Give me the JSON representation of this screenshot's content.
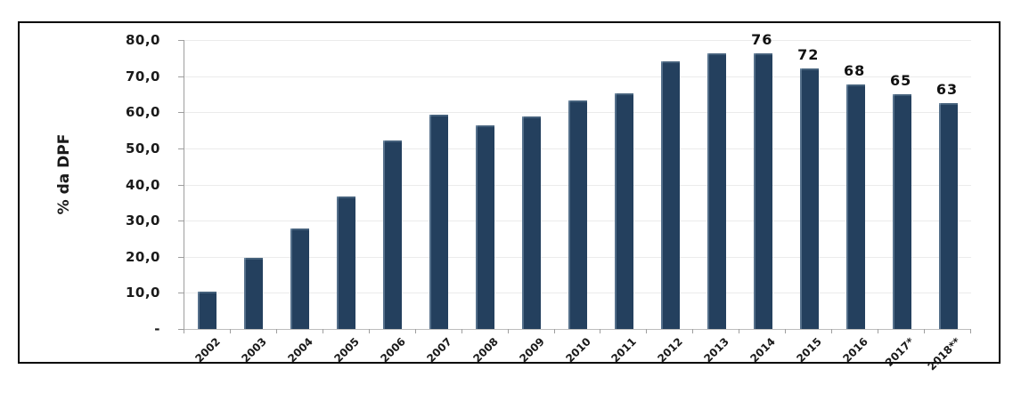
{
  "chart_data": {
    "type": "bar",
    "title": "",
    "xlabel": "",
    "ylabel": "% da DPF",
    "ylim": [
      0,
      80
    ],
    "grid": true,
    "legend": "none",
    "categories": [
      "2002",
      "2003",
      "2004",
      "2005",
      "2006",
      "2007",
      "2008",
      "2009",
      "2010",
      "2011",
      "2012",
      "2013",
      "2014",
      "2015",
      "2016",
      "2017*",
      "2018**"
    ],
    "values": [
      10.4,
      19.7,
      27.8,
      36.6,
      52.2,
      59.2,
      56.4,
      58.9,
      63.2,
      65.3,
      74.0,
      76.4,
      76.4,
      72.0,
      67.6,
      64.9,
      62.6
    ],
    "point_labels": [
      "",
      "",
      "",
      "",
      "",
      "",
      "",
      "",
      "",
      "",
      "",
      "",
      "76",
      "72",
      "68",
      "65",
      "63"
    ],
    "y_ticks": [
      {
        "value": 80,
        "label": "80,0"
      },
      {
        "value": 70,
        "label": "70,0"
      },
      {
        "value": 60,
        "label": "60,0"
      },
      {
        "value": 50,
        "label": "50,0"
      },
      {
        "value": 40,
        "label": "40,0"
      },
      {
        "value": 30,
        "label": "30,0"
      },
      {
        "value": 20,
        "label": "20,0"
      },
      {
        "value": 10,
        "label": "10,0"
      },
      {
        "value": 0,
        "label": "-"
      }
    ],
    "colors": {
      "bar_fill": "#24405e",
      "bar_highlight": "#9db6cc",
      "gridline": "#ebebeb",
      "axis_line": "#9e9e9e",
      "frame_border": "#000000",
      "text": "#1a1a1a",
      "background": "#ffffff"
    }
  }
}
